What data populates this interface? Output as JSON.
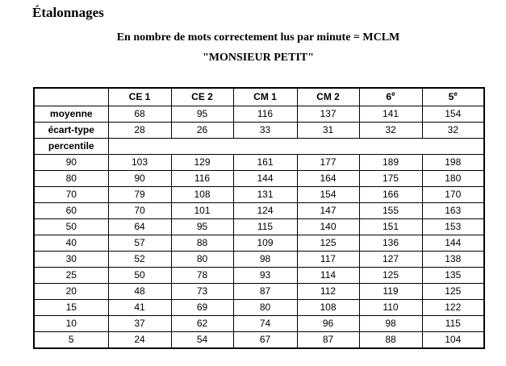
{
  "page": {
    "title": "Étalonnages",
    "subtitle1": "En nombre de mots correctement lus par minute = MCLM",
    "subtitle2": "\"MONSIEUR PETIT\""
  },
  "table": {
    "header": {
      "col0": "",
      "cols": [
        "CE 1",
        "CE 2",
        "CM 1",
        "CM 2"
      ],
      "sup_cols": [
        {
          "base": "6",
          "sup": "e"
        },
        {
          "base": "5",
          "sup": "e"
        }
      ]
    },
    "stat_rows": [
      {
        "label": "moyenne",
        "values": [
          68,
          95,
          116,
          137,
          141,
          154
        ]
      },
      {
        "label": "écart-type",
        "values": [
          28,
          26,
          33,
          31,
          32,
          32
        ]
      }
    ],
    "section_row": {
      "label": "percentile"
    },
    "percentile_rows": [
      {
        "label": "90",
        "values": [
          103,
          129,
          161,
          177,
          189,
          198
        ]
      },
      {
        "label": "80",
        "values": [
          90,
          116,
          144,
          164,
          175,
          180
        ]
      },
      {
        "label": "70",
        "values": [
          79,
          108,
          131,
          154,
          166,
          170
        ]
      },
      {
        "label": "60",
        "values": [
          70,
          101,
          124,
          147,
          155,
          163
        ]
      },
      {
        "label": "50",
        "values": [
          64,
          95,
          115,
          140,
          151,
          153
        ]
      },
      {
        "label": "40",
        "values": [
          57,
          88,
          109,
          125,
          136,
          144
        ]
      },
      {
        "label": "30",
        "values": [
          52,
          80,
          98,
          117,
          127,
          138
        ]
      },
      {
        "label": "25",
        "values": [
          50,
          78,
          93,
          114,
          125,
          135
        ]
      },
      {
        "label": "20",
        "values": [
          48,
          73,
          87,
          112,
          119,
          125
        ]
      },
      {
        "label": "15",
        "values": [
          41,
          69,
          80,
          108,
          110,
          122
        ]
      },
      {
        "label": "10",
        "values": [
          37,
          62,
          74,
          96,
          98,
          115
        ]
      },
      {
        "label": "5",
        "values": [
          24,
          54,
          67,
          87,
          88,
          104
        ]
      }
    ]
  }
}
